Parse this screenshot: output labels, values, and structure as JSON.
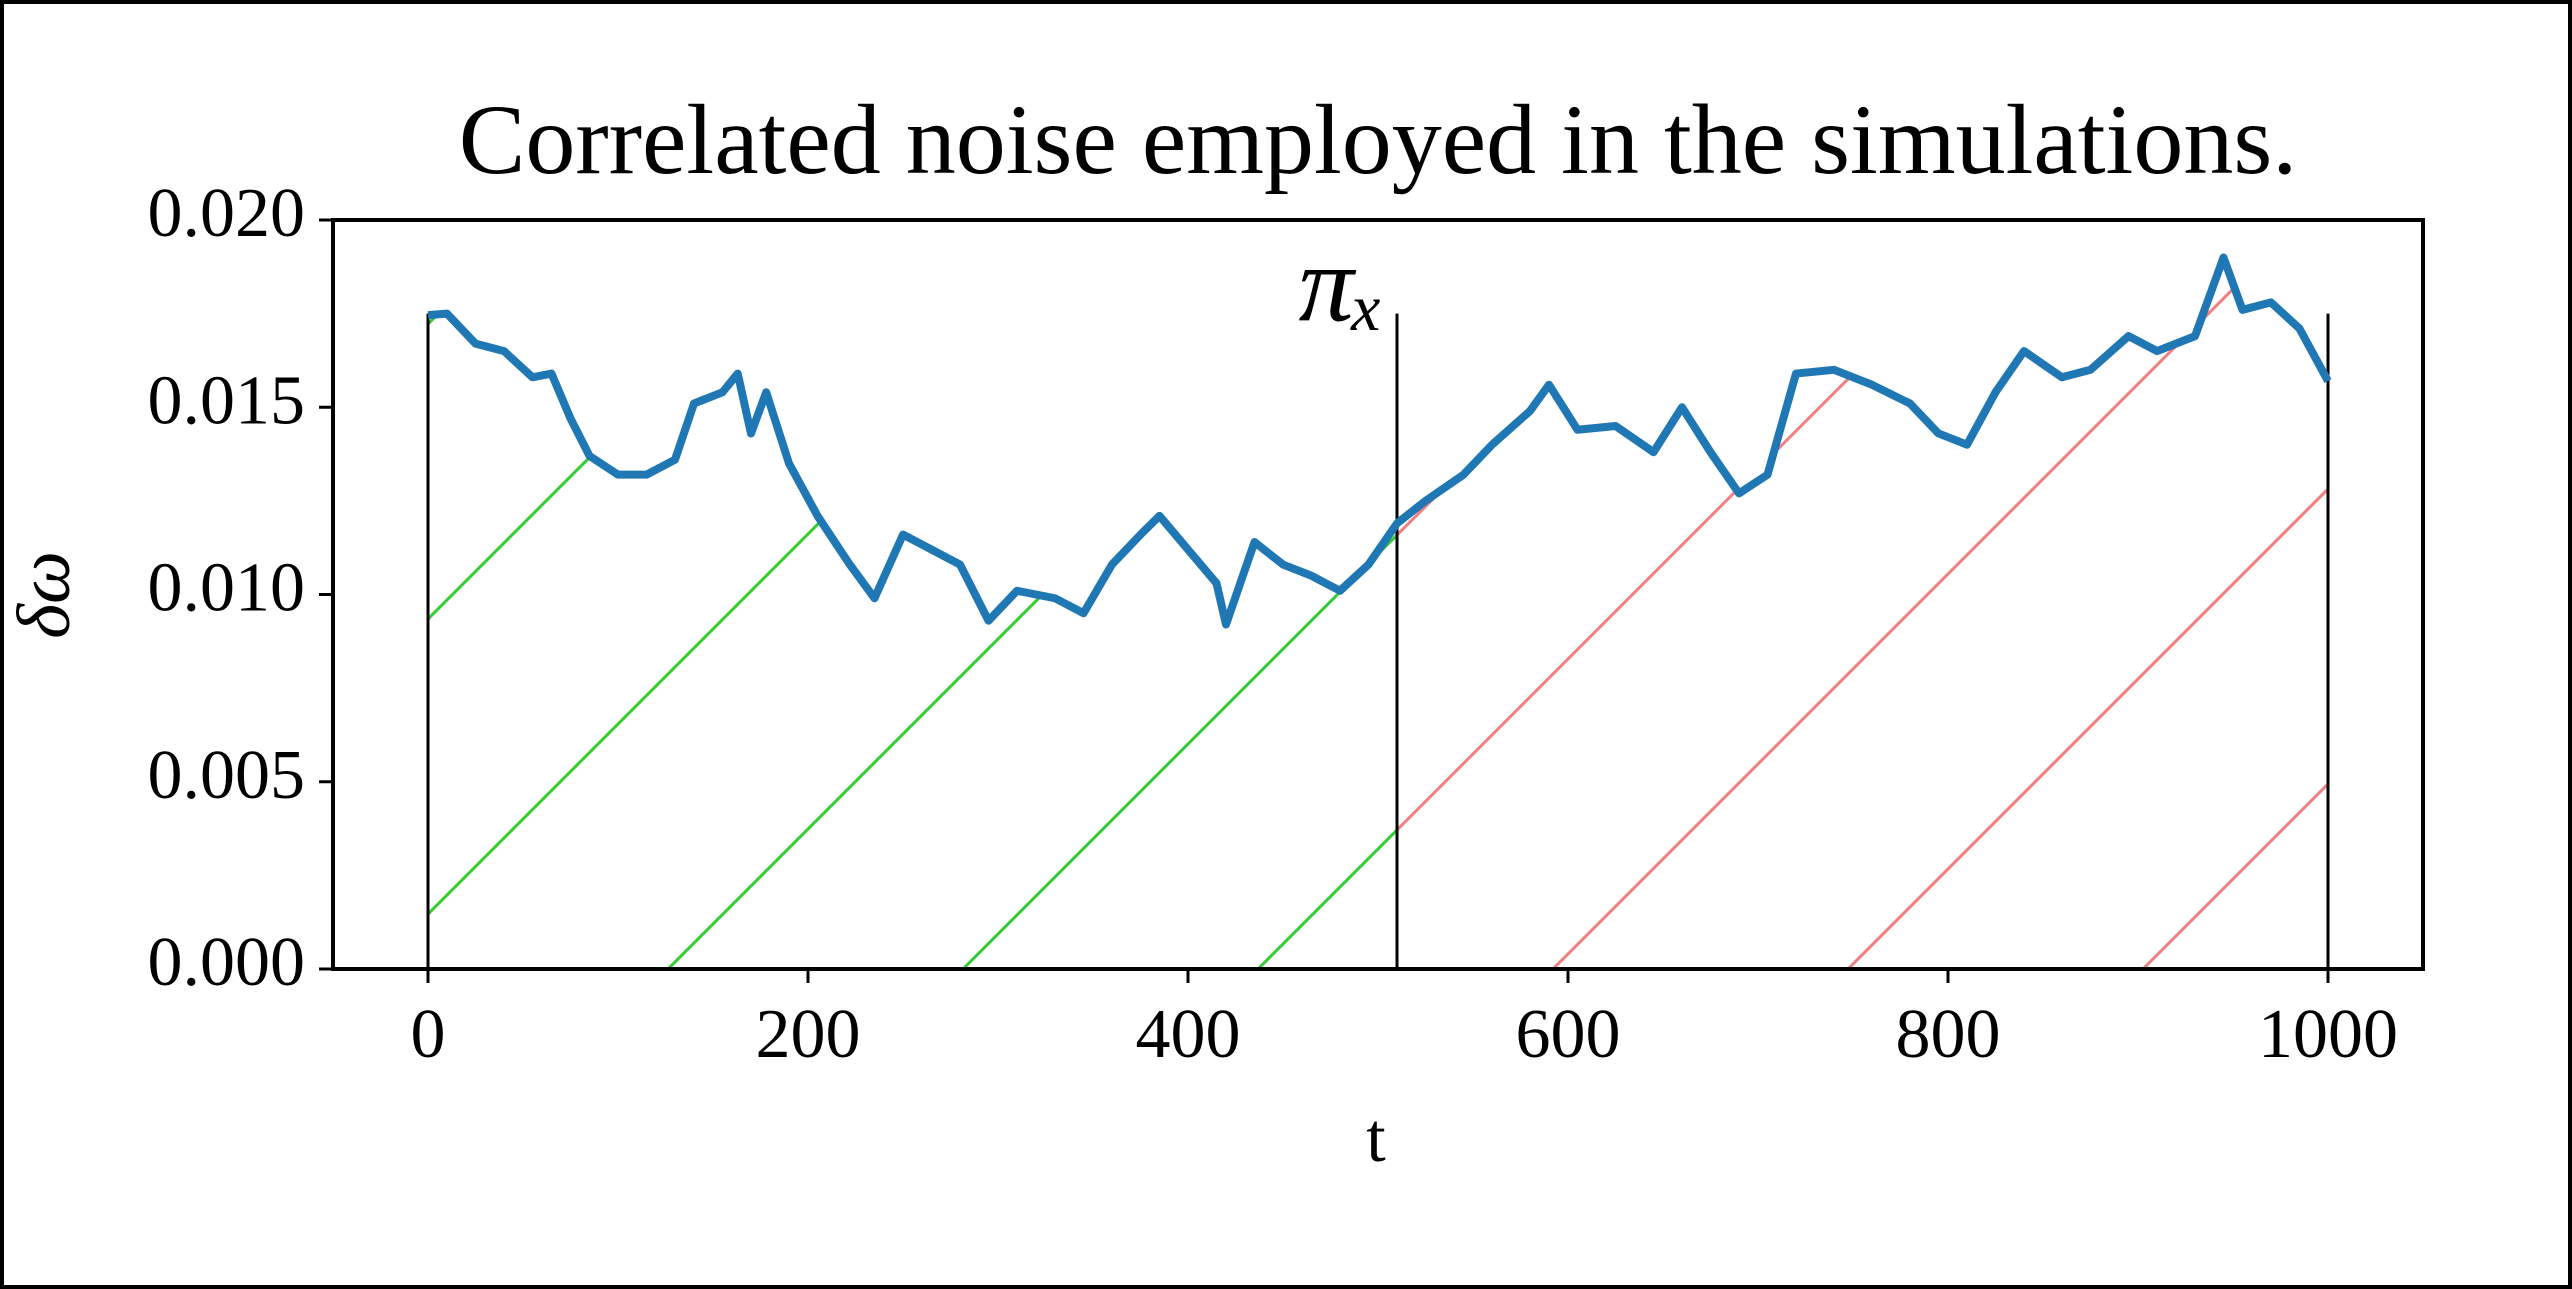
{
  "chart_data": {
    "type": "line",
    "title": "Correlated noise employed in the simulations.",
    "x_label": "t",
    "y_label": "δω",
    "annotation": "πₓ",
    "annotation_x": 510,
    "x": [
      0,
      10,
      25,
      40,
      55,
      65,
      75,
      85,
      100,
      115,
      130,
      140,
      155,
      163,
      170,
      178,
      190,
      205,
      222,
      235,
      250,
      265,
      280,
      295,
      310,
      330,
      345,
      360,
      375,
      385,
      400,
      415,
      420,
      435,
      450,
      465,
      480,
      495,
      510,
      525,
      545,
      560,
      580,
      590,
      605,
      625,
      645,
      660,
      675,
      690,
      705,
      720,
      740,
      760,
      780,
      795,
      810,
      825,
      840,
      860,
      875,
      895,
      910,
      930,
      945,
      955,
      970,
      985,
      1000
    ],
    "series": [
      {
        "color": "#1f77b4",
        "values": [
          0.01746,
          0.0175,
          0.0167,
          0.0165,
          0.0158,
          0.0159,
          0.0147,
          0.0137,
          0.0132,
          0.0132,
          0.0136,
          0.0151,
          0.0154,
          0.0159,
          0.0143,
          0.0154,
          0.0135,
          0.0121,
          0.0108,
          0.0099,
          0.0116,
          0.0112,
          0.0108,
          0.0093,
          0.0101,
          0.0099,
          0.0095,
          0.0108,
          0.0116,
          0.0121,
          0.0112,
          0.0103,
          0.0092,
          0.0114,
          0.0108,
          0.0105,
          0.0101,
          0.0108,
          0.0119,
          0.0125,
          0.0132,
          0.014,
          0.0149,
          0.0156,
          0.0144,
          0.0145,
          0.0138,
          0.015,
          0.0138,
          0.0127,
          0.0132,
          0.0159,
          0.016,
          0.0156,
          0.0151,
          0.0143,
          0.014,
          0.0154,
          0.0165,
          0.0158,
          0.016,
          0.0169,
          0.0165,
          0.0169,
          0.019,
          0.0176,
          0.0178,
          0.0171,
          0.0157
        ]
      }
    ],
    "fills": [
      {
        "from": 0,
        "to": 510,
        "color": "#33cc33"
      },
      {
        "from": 510,
        "to": 1000,
        "color": "#f08080"
      }
    ],
    "vlines": [
      0,
      510,
      1000
    ],
    "vline_top": 0.0175,
    "xlim": [
      -50,
      1050
    ],
    "xticks": [
      0,
      200,
      400,
      600,
      800,
      1000
    ],
    "ylim": [
      0,
      0.02
    ],
    "yticks": [
      {
        "value": 0,
        "label": "0.000"
      },
      {
        "value": 0.005,
        "label": "0.005"
      },
      {
        "value": 0.01,
        "label": "0.010"
      },
      {
        "value": 0.015,
        "label": "0.015"
      },
      {
        "value": 0.02,
        "label": "0.020"
      }
    ]
  }
}
